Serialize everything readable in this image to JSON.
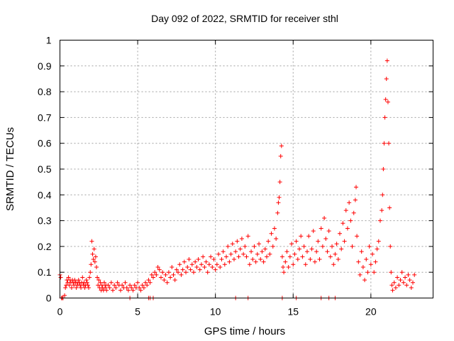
{
  "chart_data": {
    "type": "scatter",
    "title": "Day 092 of 2022, SRMTID for receiver sthl",
    "xlabel": "GPS time / hours",
    "ylabel": "SRMTID / TECUs",
    "xlim": [
      0,
      24
    ],
    "ylim": [
      0,
      1
    ],
    "xticks": [
      0,
      5,
      10,
      15,
      20
    ],
    "xtick_labels": [
      "0",
      "5",
      "10",
      "15",
      "20"
    ],
    "yticks": [
      0,
      0.1,
      0.2,
      0.3,
      0.4,
      0.5,
      0.6,
      0.7,
      0.8,
      0.9,
      1
    ],
    "ytick_labels": [
      "0",
      "0.1",
      "0.2",
      "0.3",
      "0.4",
      "0.5",
      "0.6",
      "0.7",
      "0.8",
      "0.9",
      "1"
    ],
    "grid": true,
    "marker": "+",
    "color": "#ff0000",
    "series": [
      {
        "name": "SRMTID",
        "points": [
          [
            0.0,
            0.09
          ],
          [
            0.05,
            0.08
          ],
          [
            0.1,
            0.0
          ],
          [
            0.15,
            0.0
          ],
          [
            0.2,
            0.0
          ],
          [
            0.3,
            0.01
          ],
          [
            0.35,
            0.04
          ],
          [
            0.4,
            0.05
          ],
          [
            0.45,
            0.07
          ],
          [
            0.5,
            0.06
          ],
          [
            0.55,
            0.08
          ],
          [
            0.6,
            0.05
          ],
          [
            0.65,
            0.07
          ],
          [
            0.7,
            0.06
          ],
          [
            0.75,
            0.04
          ],
          [
            0.8,
            0.07
          ],
          [
            0.85,
            0.06
          ],
          [
            0.9,
            0.05
          ],
          [
            0.95,
            0.07
          ],
          [
            1.0,
            0.06
          ],
          [
            1.05,
            0.04
          ],
          [
            1.1,
            0.06
          ],
          [
            1.15,
            0.05
          ],
          [
            1.2,
            0.07
          ],
          [
            1.25,
            0.06
          ],
          [
            1.3,
            0.05
          ],
          [
            1.35,
            0.04
          ],
          [
            1.4,
            0.06
          ],
          [
            1.45,
            0.08
          ],
          [
            1.5,
            0.05
          ],
          [
            1.55,
            0.06
          ],
          [
            1.6,
            0.04
          ],
          [
            1.65,
            0.05
          ],
          [
            1.7,
            0.07
          ],
          [
            1.75,
            0.06
          ],
          [
            1.8,
            0.05
          ],
          [
            1.85,
            0.04
          ],
          [
            1.9,
            0.08
          ],
          [
            1.95,
            0.1
          ],
          [
            2.0,
            0.13
          ],
          [
            2.05,
            0.22
          ],
          [
            2.1,
            0.17
          ],
          [
            2.15,
            0.15
          ],
          [
            2.2,
            0.19
          ],
          [
            2.25,
            0.14
          ],
          [
            2.3,
            0.16
          ],
          [
            2.35,
            0.12
          ],
          [
            2.4,
            0.08
          ],
          [
            2.45,
            0.05
          ],
          [
            2.5,
            0.07
          ],
          [
            2.55,
            0.04
          ],
          [
            2.6,
            0.06
          ],
          [
            2.65,
            0.03
          ],
          [
            2.7,
            0.05
          ],
          [
            2.75,
            0.04
          ],
          [
            2.8,
            0.03
          ],
          [
            2.85,
            0.06
          ],
          [
            2.9,
            0.04
          ],
          [
            2.95,
            0.05
          ],
          [
            3.0,
            0.03
          ],
          [
            3.1,
            0.05
          ],
          [
            3.2,
            0.04
          ],
          [
            3.3,
            0.06
          ],
          [
            3.4,
            0.03
          ],
          [
            3.5,
            0.05
          ],
          [
            3.6,
            0.04
          ],
          [
            3.7,
            0.06
          ],
          [
            3.8,
            0.05
          ],
          [
            3.9,
            0.03
          ],
          [
            4.0,
            0.05
          ],
          [
            4.1,
            0.04
          ],
          [
            4.2,
            0.06
          ],
          [
            4.3,
            0.04
          ],
          [
            4.4,
            0.03
          ],
          [
            4.5,
            0.05
          ],
          [
            4.6,
            0.04
          ],
          [
            4.7,
            0.03
          ],
          [
            4.8,
            0.05
          ],
          [
            4.9,
            0.04
          ],
          [
            5.0,
            0.06
          ],
          [
            5.1,
            0.04
          ],
          [
            5.2,
            0.03
          ],
          [
            5.3,
            0.05
          ],
          [
            5.4,
            0.04
          ],
          [
            5.5,
            0.06
          ],
          [
            5.6,
            0.05
          ],
          [
            5.7,
            0.07
          ],
          [
            5.8,
            0.06
          ],
          [
            5.9,
            0.09
          ],
          [
            6.0,
            0.08
          ],
          [
            6.1,
            0.1
          ],
          [
            6.2,
            0.09
          ],
          [
            6.3,
            0.12
          ],
          [
            6.4,
            0.11
          ],
          [
            6.5,
            0.08
          ],
          [
            6.6,
            0.1
          ],
          [
            6.7,
            0.07
          ],
          [
            6.8,
            0.09
          ],
          [
            6.9,
            0.06
          ],
          [
            7.0,
            0.1
          ],
          [
            7.1,
            0.08
          ],
          [
            7.2,
            0.12
          ],
          [
            7.3,
            0.09
          ],
          [
            7.4,
            0.07
          ],
          [
            7.5,
            0.11
          ],
          [
            7.6,
            0.1
          ],
          [
            7.7,
            0.13
          ],
          [
            7.8,
            0.09
          ],
          [
            7.9,
            0.11
          ],
          [
            8.0,
            0.14
          ],
          [
            8.1,
            0.1
          ],
          [
            8.2,
            0.12
          ],
          [
            8.3,
            0.15
          ],
          [
            8.4,
            0.11
          ],
          [
            8.5,
            0.13
          ],
          [
            8.6,
            0.1
          ],
          [
            8.7,
            0.14
          ],
          [
            8.8,
            0.12
          ],
          [
            8.9,
            0.15
          ],
          [
            9.0,
            0.11
          ],
          [
            9.1,
            0.13
          ],
          [
            9.2,
            0.16
          ],
          [
            9.3,
            0.12
          ],
          [
            9.4,
            0.14
          ],
          [
            9.5,
            0.1
          ],
          [
            9.6,
            0.13
          ],
          [
            9.7,
            0.16
          ],
          [
            9.8,
            0.12
          ],
          [
            9.9,
            0.15
          ],
          [
            10.0,
            0.11
          ],
          [
            10.1,
            0.13
          ],
          [
            10.2,
            0.17
          ],
          [
            10.3,
            0.12
          ],
          [
            10.4,
            0.15
          ],
          [
            10.5,
            0.18
          ],
          [
            10.6,
            0.13
          ],
          [
            10.7,
            0.16
          ],
          [
            10.8,
            0.2
          ],
          [
            10.9,
            0.14
          ],
          [
            11.0,
            0.17
          ],
          [
            11.1,
            0.21
          ],
          [
            11.2,
            0.15
          ],
          [
            11.3,
            0.18
          ],
          [
            11.4,
            0.22
          ],
          [
            11.5,
            0.16
          ],
          [
            11.6,
            0.19
          ],
          [
            11.7,
            0.23
          ],
          [
            11.8,
            0.17
          ],
          [
            11.9,
            0.2
          ],
          [
            12.0,
            0.16
          ],
          [
            12.1,
            0.24
          ],
          [
            12.2,
            0.13
          ],
          [
            12.3,
            0.18
          ],
          [
            12.4,
            0.15
          ],
          [
            12.5,
            0.2
          ],
          [
            12.6,
            0.14
          ],
          [
            12.7,
            0.17
          ],
          [
            12.8,
            0.21
          ],
          [
            12.9,
            0.15
          ],
          [
            13.0,
            0.18
          ],
          [
            13.1,
            0.14
          ],
          [
            13.2,
            0.19
          ],
          [
            13.3,
            0.16
          ],
          [
            13.4,
            0.22
          ],
          [
            13.5,
            0.17
          ],
          [
            13.6,
            0.25
          ],
          [
            13.7,
            0.2
          ],
          [
            13.8,
            0.27
          ],
          [
            13.9,
            0.23
          ],
          [
            14.0,
            0.33
          ],
          [
            14.05,
            0.37
          ],
          [
            14.1,
            0.39
          ],
          [
            14.15,
            0.45
          ],
          [
            14.2,
            0.55
          ],
          [
            14.25,
            0.59
          ],
          [
            14.3,
            0.16
          ],
          [
            14.35,
            0.12
          ],
          [
            14.4,
            0.1
          ],
          [
            14.5,
            0.14
          ],
          [
            14.6,
            0.18
          ],
          [
            14.7,
            0.12
          ],
          [
            14.8,
            0.16
          ],
          [
            14.9,
            0.21
          ],
          [
            15.0,
            0.13
          ],
          [
            15.1,
            0.17
          ],
          [
            15.2,
            0.22
          ],
          [
            15.3,
            0.15
          ],
          [
            15.4,
            0.19
          ],
          [
            15.5,
            0.24
          ],
          [
            15.6,
            0.16
          ],
          [
            15.7,
            0.2
          ],
          [
            15.8,
            0.13
          ],
          [
            15.9,
            0.18
          ],
          [
            16.0,
            0.24
          ],
          [
            16.1,
            0.15
          ],
          [
            16.2,
            0.19
          ],
          [
            16.3,
            0.26
          ],
          [
            16.4,
            0.14
          ],
          [
            16.5,
            0.18
          ],
          [
            16.6,
            0.22
          ],
          [
            16.7,
            0.15
          ],
          [
            16.8,
            0.27
          ],
          [
            16.9,
            0.2
          ],
          [
            17.0,
            0.31
          ],
          [
            17.1,
            0.23
          ],
          [
            17.2,
            0.18
          ],
          [
            17.3,
            0.26
          ],
          [
            17.4,
            0.16
          ],
          [
            17.5,
            0.2
          ],
          [
            17.6,
            0.13
          ],
          [
            17.7,
            0.17
          ],
          [
            17.8,
            0.21
          ],
          [
            17.9,
            0.15
          ],
          [
            18.0,
            0.25
          ],
          [
            18.1,
            0.19
          ],
          [
            18.2,
            0.29
          ],
          [
            18.3,
            0.22
          ],
          [
            18.4,
            0.34
          ],
          [
            18.5,
            0.27
          ],
          [
            18.6,
            0.37
          ],
          [
            18.7,
            0.3
          ],
          [
            18.8,
            0.2
          ],
          [
            18.9,
            0.33
          ],
          [
            19.0,
            0.38
          ],
          [
            19.05,
            0.43
          ],
          [
            19.1,
            0.24
          ],
          [
            19.2,
            0.14
          ],
          [
            19.3,
            0.09
          ],
          [
            19.4,
            0.18
          ],
          [
            19.5,
            0.12
          ],
          [
            19.6,
            0.07
          ],
          [
            19.7,
            0.15
          ],
          [
            19.8,
            0.1
          ],
          [
            19.9,
            0.2
          ],
          [
            20.0,
            0.13
          ],
          [
            20.1,
            0.17
          ],
          [
            20.2,
            0.1
          ],
          [
            20.3,
            0.14
          ],
          [
            20.4,
            0.19
          ],
          [
            20.5,
            0.22
          ],
          [
            20.6,
            0.3
          ],
          [
            20.7,
            0.34
          ],
          [
            20.75,
            0.4
          ],
          [
            20.8,
            0.5
          ],
          [
            20.85,
            0.6
          ],
          [
            20.9,
            0.7
          ],
          [
            20.95,
            0.77
          ],
          [
            21.0,
            0.85
          ],
          [
            21.05,
            0.92
          ],
          [
            21.1,
            0.76
          ],
          [
            21.15,
            0.6
          ],
          [
            21.2,
            0.35
          ],
          [
            21.25,
            0.2
          ],
          [
            21.3,
            0.1
          ],
          [
            21.35,
            0.05
          ],
          [
            21.4,
            0.03
          ],
          [
            21.5,
            0.06
          ],
          [
            21.6,
            0.04
          ],
          [
            21.7,
            0.08
          ],
          [
            21.8,
            0.05
          ],
          [
            21.9,
            0.07
          ],
          [
            22.0,
            0.1
          ],
          [
            22.1,
            0.06
          ],
          [
            22.2,
            0.08
          ],
          [
            22.3,
            0.05
          ],
          [
            22.4,
            0.09
          ],
          [
            22.5,
            0.07
          ],
          [
            22.6,
            0.04
          ],
          [
            22.7,
            0.06
          ],
          [
            22.8,
            0.09
          ],
          [
            11.3,
            0.0
          ],
          [
            12.1,
            0.0
          ],
          [
            14.3,
            0.0
          ],
          [
            15.2,
            0.0
          ],
          [
            16.8,
            0.0
          ],
          [
            17.3,
            0.0
          ],
          [
            17.7,
            0.0
          ],
          [
            5.7,
            0.0
          ],
          [
            5.8,
            0.0
          ],
          [
            6.0,
            0.0
          ],
          [
            4.5,
            0.0
          ]
        ]
      }
    ]
  }
}
